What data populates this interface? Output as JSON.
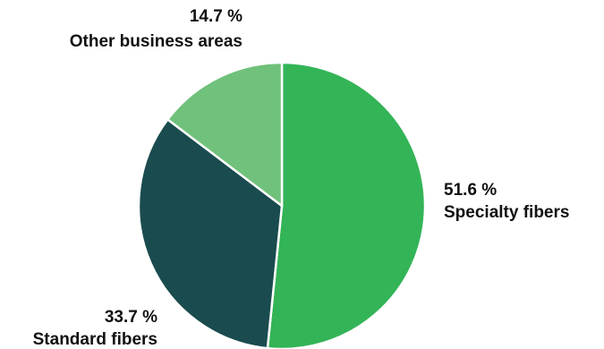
{
  "chart_data": {
    "type": "pie",
    "start": "12 o'clock",
    "direction": "clockwise",
    "slices": [
      {
        "label": "Specialty fibers",
        "value": 51.6,
        "value_label": "51.6 %",
        "color": "#33b457"
      },
      {
        "label": "Standard fibers",
        "value": 33.7,
        "value_label": "33.7 %",
        "color": "#1a4b4f"
      },
      {
        "label": "Other business areas",
        "value": 14.7,
        "value_label": "14.7 %",
        "color": "#70c17b"
      }
    ],
    "slice_border_color": "#ffffff",
    "label_color": "#111111"
  }
}
